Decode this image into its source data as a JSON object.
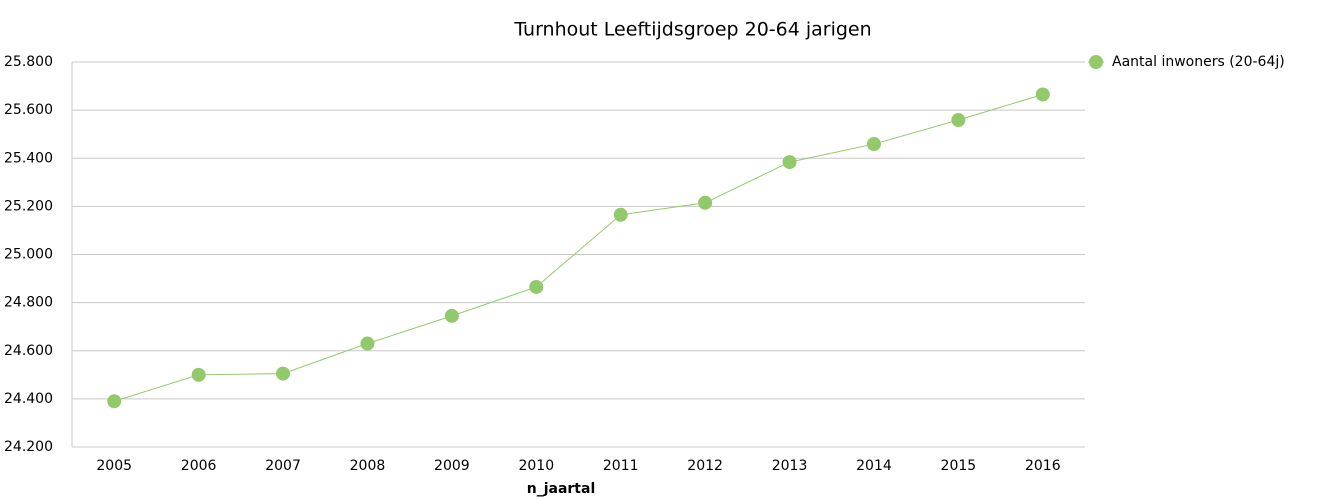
{
  "chart_data": {
    "type": "line",
    "title": "Turnhout  Leeftijdsgroep 20-64 jarigen",
    "x_label": "n_jaartal",
    "categories": [
      "2005",
      "2006",
      "2007",
      "2008",
      "2009",
      "2010",
      "2011",
      "2012",
      "2013",
      "2014",
      "2015",
      "2016"
    ],
    "series": [
      {
        "name": "Aantal inwoners  (20-64j)",
        "color": "#92c96a",
        "values": [
          24390,
          24500,
          24505,
          24630,
          24745,
          24865,
          25165,
          25215,
          25384,
          25459,
          25559,
          25665
        ]
      }
    ],
    "ylim": [
      24200,
      25800
    ],
    "yticks": [
      {
        "value": 24200,
        "label": "24.200"
      },
      {
        "value": 24400,
        "label": "24.400"
      },
      {
        "value": 24600,
        "label": "24.600"
      },
      {
        "value": 24800,
        "label": "24.800"
      },
      {
        "value": 25000,
        "label": "25.000"
      },
      {
        "value": 25200,
        "label": "25.200"
      },
      {
        "value": 25400,
        "label": "25.400"
      },
      {
        "value": 25600,
        "label": "25.600"
      },
      {
        "value": 25800,
        "label": "25.800"
      }
    ],
    "grid": true,
    "legend": "top-right"
  }
}
